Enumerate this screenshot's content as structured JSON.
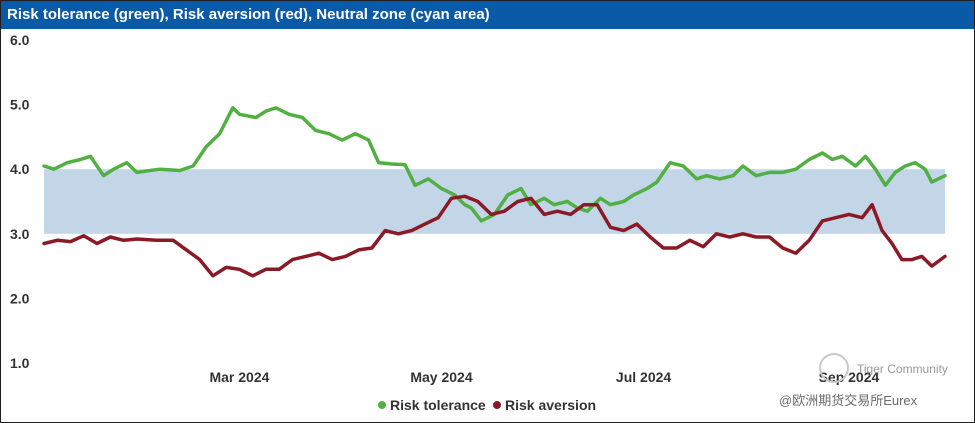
{
  "title": "Risk tolerance (green), Risk aversion (red), Neutral zone (cyan area)",
  "watermark": {
    "line1": "Tiger Community",
    "line2": "@欧洲期货交易所Eurex"
  },
  "colors": {
    "header": "#0a5aa8",
    "tolerance": "#52b043",
    "aversion": "#8b1a26",
    "neutral": "#c2d6e8"
  },
  "chart_data": {
    "type": "line",
    "title": "Risk tolerance (green), Risk aversion (red), Neutral zone (cyan area)",
    "x_ticks": [
      "Mar 2024",
      "May 2024",
      "Jul 2024",
      "Sep 2024"
    ],
    "x_tick_dates": [
      "2024-03-01",
      "2024-05-01",
      "2024-07-01",
      "2024-09-01"
    ],
    "x_range": [
      "2024-01-02",
      "2024-09-30"
    ],
    "y_ticks": [
      "1.0",
      "2.0",
      "3.0",
      "4.0",
      "5.0",
      "6.0"
    ],
    "ylim": [
      1.0,
      6.0
    ],
    "neutral_zone": [
      3.0,
      4.0
    ],
    "grid": false,
    "legend_position": "bottom-center",
    "series": [
      {
        "name": "Risk tolerance",
        "color": "#52b043",
        "points": [
          [
            "2024-01-02",
            4.05
          ],
          [
            "2024-01-05",
            4.0
          ],
          [
            "2024-01-09",
            4.1
          ],
          [
            "2024-01-13",
            4.15
          ],
          [
            "2024-01-16",
            4.2
          ],
          [
            "2024-01-20",
            3.9
          ],
          [
            "2024-01-23",
            4.0
          ],
          [
            "2024-01-27",
            4.1
          ],
          [
            "2024-01-30",
            3.95
          ],
          [
            "2024-02-06",
            4.0
          ],
          [
            "2024-02-12",
            3.98
          ],
          [
            "2024-02-16",
            4.05
          ],
          [
            "2024-02-20",
            4.35
          ],
          [
            "2024-02-24",
            4.55
          ],
          [
            "2024-02-28",
            4.95
          ],
          [
            "2024-03-01",
            4.85
          ],
          [
            "2024-03-06",
            4.8
          ],
          [
            "2024-03-09",
            4.9
          ],
          [
            "2024-03-12",
            4.95
          ],
          [
            "2024-03-16",
            4.85
          ],
          [
            "2024-03-20",
            4.8
          ],
          [
            "2024-03-24",
            4.6
          ],
          [
            "2024-03-28",
            4.55
          ],
          [
            "2024-04-01",
            4.45
          ],
          [
            "2024-04-05",
            4.55
          ],
          [
            "2024-04-09",
            4.45
          ],
          [
            "2024-04-12",
            4.1
          ],
          [
            "2024-04-16",
            4.08
          ],
          [
            "2024-04-20",
            4.07
          ],
          [
            "2024-04-23",
            3.75
          ],
          [
            "2024-04-27",
            3.85
          ],
          [
            "2024-05-01",
            3.7
          ],
          [
            "2024-05-05",
            3.6
          ],
          [
            "2024-05-08",
            3.45
          ],
          [
            "2024-05-10",
            3.4
          ],
          [
            "2024-05-13",
            3.2
          ],
          [
            "2024-05-17",
            3.3
          ],
          [
            "2024-05-21",
            3.6
          ],
          [
            "2024-05-25",
            3.7
          ],
          [
            "2024-05-28",
            3.45
          ],
          [
            "2024-06-01",
            3.55
          ],
          [
            "2024-06-04",
            3.45
          ],
          [
            "2024-06-08",
            3.5
          ],
          [
            "2024-06-11",
            3.4
          ],
          [
            "2024-06-14",
            3.35
          ],
          [
            "2024-06-18",
            3.55
          ],
          [
            "2024-06-21",
            3.45
          ],
          [
            "2024-06-25",
            3.5
          ],
          [
            "2024-06-28",
            3.6
          ],
          [
            "2024-07-02",
            3.7
          ],
          [
            "2024-07-05",
            3.8
          ],
          [
            "2024-07-09",
            4.1
          ],
          [
            "2024-07-13",
            4.05
          ],
          [
            "2024-07-17",
            3.85
          ],
          [
            "2024-07-20",
            3.9
          ],
          [
            "2024-07-24",
            3.85
          ],
          [
            "2024-07-28",
            3.9
          ],
          [
            "2024-07-31",
            4.05
          ],
          [
            "2024-08-04",
            3.9
          ],
          [
            "2024-08-08",
            3.95
          ],
          [
            "2024-08-12",
            3.95
          ],
          [
            "2024-08-16",
            4.0
          ],
          [
            "2024-08-20",
            4.15
          ],
          [
            "2024-08-24",
            4.25
          ],
          [
            "2024-08-27",
            4.15
          ],
          [
            "2024-08-30",
            4.2
          ],
          [
            "2024-09-03",
            4.05
          ],
          [
            "2024-09-06",
            4.2
          ],
          [
            "2024-09-09",
            4.0
          ],
          [
            "2024-09-12",
            3.75
          ],
          [
            "2024-09-15",
            3.95
          ],
          [
            "2024-09-18",
            4.05
          ],
          [
            "2024-09-21",
            4.1
          ],
          [
            "2024-09-24",
            4.0
          ],
          [
            "2024-09-26",
            3.8
          ],
          [
            "2024-09-30",
            3.9
          ]
        ]
      },
      {
        "name": "Risk aversion",
        "color": "#8b1a26",
        "points": [
          [
            "2024-01-02",
            2.85
          ],
          [
            "2024-01-06",
            2.9
          ],
          [
            "2024-01-10",
            2.88
          ],
          [
            "2024-01-14",
            2.97
          ],
          [
            "2024-01-18",
            2.85
          ],
          [
            "2024-01-22",
            2.95
          ],
          [
            "2024-01-26",
            2.9
          ],
          [
            "2024-01-30",
            2.92
          ],
          [
            "2024-02-05",
            2.9
          ],
          [
            "2024-02-10",
            2.9
          ],
          [
            "2024-02-14",
            2.75
          ],
          [
            "2024-02-18",
            2.6
          ],
          [
            "2024-02-22",
            2.35
          ],
          [
            "2024-02-26",
            2.48
          ],
          [
            "2024-03-01",
            2.45
          ],
          [
            "2024-03-05",
            2.35
          ],
          [
            "2024-03-09",
            2.45
          ],
          [
            "2024-03-13",
            2.45
          ],
          [
            "2024-03-17",
            2.6
          ],
          [
            "2024-03-21",
            2.65
          ],
          [
            "2024-03-25",
            2.7
          ],
          [
            "2024-03-29",
            2.6
          ],
          [
            "2024-04-02",
            2.65
          ],
          [
            "2024-04-06",
            2.75
          ],
          [
            "2024-04-10",
            2.78
          ],
          [
            "2024-04-14",
            3.05
          ],
          [
            "2024-04-18",
            3.0
          ],
          [
            "2024-04-22",
            3.05
          ],
          [
            "2024-04-26",
            3.15
          ],
          [
            "2024-04-30",
            3.25
          ],
          [
            "2024-05-04",
            3.55
          ],
          [
            "2024-05-08",
            3.58
          ],
          [
            "2024-05-12",
            3.5
          ],
          [
            "2024-05-16",
            3.3
          ],
          [
            "2024-05-20",
            3.35
          ],
          [
            "2024-05-24",
            3.5
          ],
          [
            "2024-05-28",
            3.55
          ],
          [
            "2024-06-01",
            3.3
          ],
          [
            "2024-06-05",
            3.35
          ],
          [
            "2024-06-09",
            3.3
          ],
          [
            "2024-06-13",
            3.45
          ],
          [
            "2024-06-17",
            3.45
          ],
          [
            "2024-06-21",
            3.1
          ],
          [
            "2024-06-25",
            3.05
          ],
          [
            "2024-06-29",
            3.15
          ],
          [
            "2024-07-03",
            2.95
          ],
          [
            "2024-07-07",
            2.78
          ],
          [
            "2024-07-11",
            2.78
          ],
          [
            "2024-07-15",
            2.9
          ],
          [
            "2024-07-19",
            2.8
          ],
          [
            "2024-07-23",
            3.0
          ],
          [
            "2024-07-27",
            2.95
          ],
          [
            "2024-07-31",
            3.0
          ],
          [
            "2024-08-04",
            2.95
          ],
          [
            "2024-08-08",
            2.95
          ],
          [
            "2024-08-12",
            2.78
          ],
          [
            "2024-08-16",
            2.7
          ],
          [
            "2024-08-20",
            2.9
          ],
          [
            "2024-08-24",
            3.2
          ],
          [
            "2024-08-28",
            3.25
          ],
          [
            "2024-09-01",
            3.3
          ],
          [
            "2024-09-05",
            3.25
          ],
          [
            "2024-09-08",
            3.45
          ],
          [
            "2024-09-11",
            3.05
          ],
          [
            "2024-09-14",
            2.85
          ],
          [
            "2024-09-17",
            2.6
          ],
          [
            "2024-09-20",
            2.6
          ],
          [
            "2024-09-23",
            2.65
          ],
          [
            "2024-09-26",
            2.5
          ],
          [
            "2024-09-30",
            2.65
          ]
        ]
      }
    ]
  }
}
